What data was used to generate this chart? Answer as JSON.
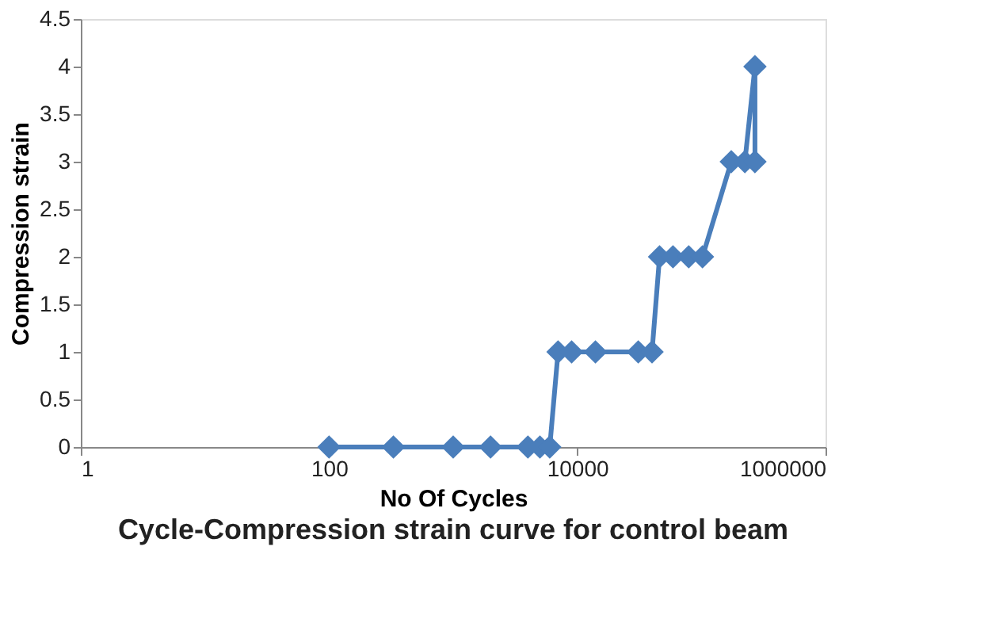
{
  "chart_data": {
    "type": "line",
    "title": "Cycle-Compression strain curve for control beam",
    "xlabel": "No Of Cycles",
    "ylabel": "Compression strain",
    "log": "x",
    "xlim": [
      1,
      1000000
    ],
    "xticks": [
      1,
      100,
      10000,
      1000000
    ],
    "ylim": [
      0,
      4.5
    ],
    "yticks": [
      0,
      0.5,
      1,
      1.5,
      2,
      2.5,
      3,
      3.5,
      4,
      4.5
    ],
    "grid": false,
    "marker": "diamond",
    "line_style": "solid",
    "series": [
      {
        "color": "#4a7ebb",
        "x": [
          100,
          330,
          1000,
          2000,
          4000,
          5000,
          6000,
          7000,
          9000,
          14000,
          31000,
          40000,
          46000,
          59000,
          79000,
          102000,
          174000,
          224000,
          270000,
          270000
        ],
        "values": [
          0,
          0,
          0,
          0,
          0,
          0,
          0,
          1,
          1,
          1,
          1,
          1,
          2,
          2,
          2,
          2,
          3,
          3,
          4,
          3
        ]
      }
    ]
  }
}
